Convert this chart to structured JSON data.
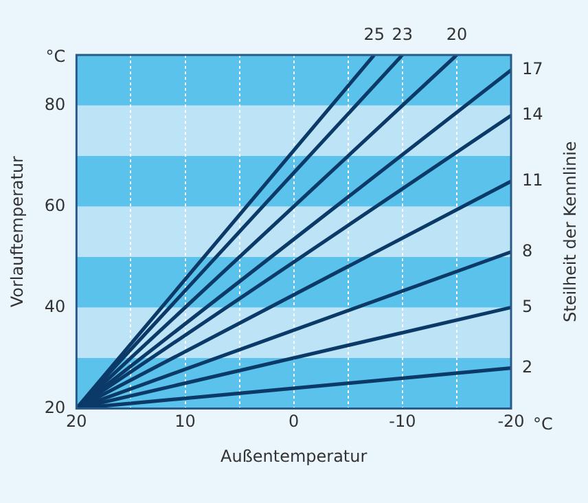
{
  "chart_data": {
    "type": "line",
    "xlabel": "Außentemperatur",
    "ylabel": "Vorlauftemperatur",
    "y2label": "Steilheit der Kennlinie",
    "annotations": [
      "°C",
      "°C"
    ],
    "xlim": [
      20,
      -20
    ],
    "xticks": [
      20,
      {
        "value": 15,
        "label": null
      },
      10,
      {
        "value": 5,
        "label": null
      },
      0,
      {
        "value": -5,
        "label": null
      },
      -10,
      {
        "value": -15,
        "label": null
      },
      -20
    ],
    "ylim": [
      20,
      90
    ],
    "yticks": [
      20,
      40,
      60,
      80
    ],
    "grid": "x",
    "legend": false,
    "marker": "none",
    "line_style": "solid",
    "bands": [
      {
        "axis": "y",
        "from": 20,
        "to": 30,
        "color": "#5bc2ec"
      },
      {
        "axis": "y",
        "from": 30,
        "to": 40,
        "color": "#bde3f6"
      },
      {
        "axis": "y",
        "from": 40,
        "to": 50,
        "color": "#5bc2ec"
      },
      {
        "axis": "y",
        "from": 50,
        "to": 60,
        "color": "#bde3f6"
      },
      {
        "axis": "y",
        "from": 60,
        "to": 70,
        "color": "#5bc2ec"
      },
      {
        "axis": "y",
        "from": 70,
        "to": 80,
        "color": "#bde3f6"
      },
      {
        "axis": "y",
        "from": 80,
        "to": 90,
        "color": "#5bc2ec"
      }
    ],
    "series": [
      {
        "name": "2",
        "color": "#0b3a68",
        "x": [
          20,
          -20
        ],
        "values": [
          20,
          28
        ]
      },
      {
        "name": "5",
        "color": "#0b3a68",
        "x": [
          20,
          -20
        ],
        "values": [
          20,
          40
        ]
      },
      {
        "name": "8",
        "color": "#0b3a68",
        "x": [
          20,
          -20
        ],
        "values": [
          20,
          51
        ]
      },
      {
        "name": "11",
        "color": "#0b3a68",
        "x": [
          20,
          -20
        ],
        "values": [
          20,
          65
        ]
      },
      {
        "name": "14",
        "color": "#0b3a68",
        "x": [
          20,
          -20
        ],
        "values": [
          20,
          78
        ]
      },
      {
        "name": "17",
        "color": "#0b3a68",
        "x": [
          20,
          -20
        ],
        "values": [
          20,
          87
        ]
      },
      {
        "name": "20",
        "color": "#0b3a68",
        "x": [
          20,
          -15
        ],
        "values": [
          20,
          90
        ]
      },
      {
        "name": "23",
        "color": "#0b3a68",
        "x": [
          20,
          -10
        ],
        "values": [
          20,
          90
        ]
      },
      {
        "name": "25",
        "color": "#0b3a68",
        "x": [
          20,
          -7.4
        ],
        "values": [
          20,
          90
        ]
      }
    ]
  }
}
